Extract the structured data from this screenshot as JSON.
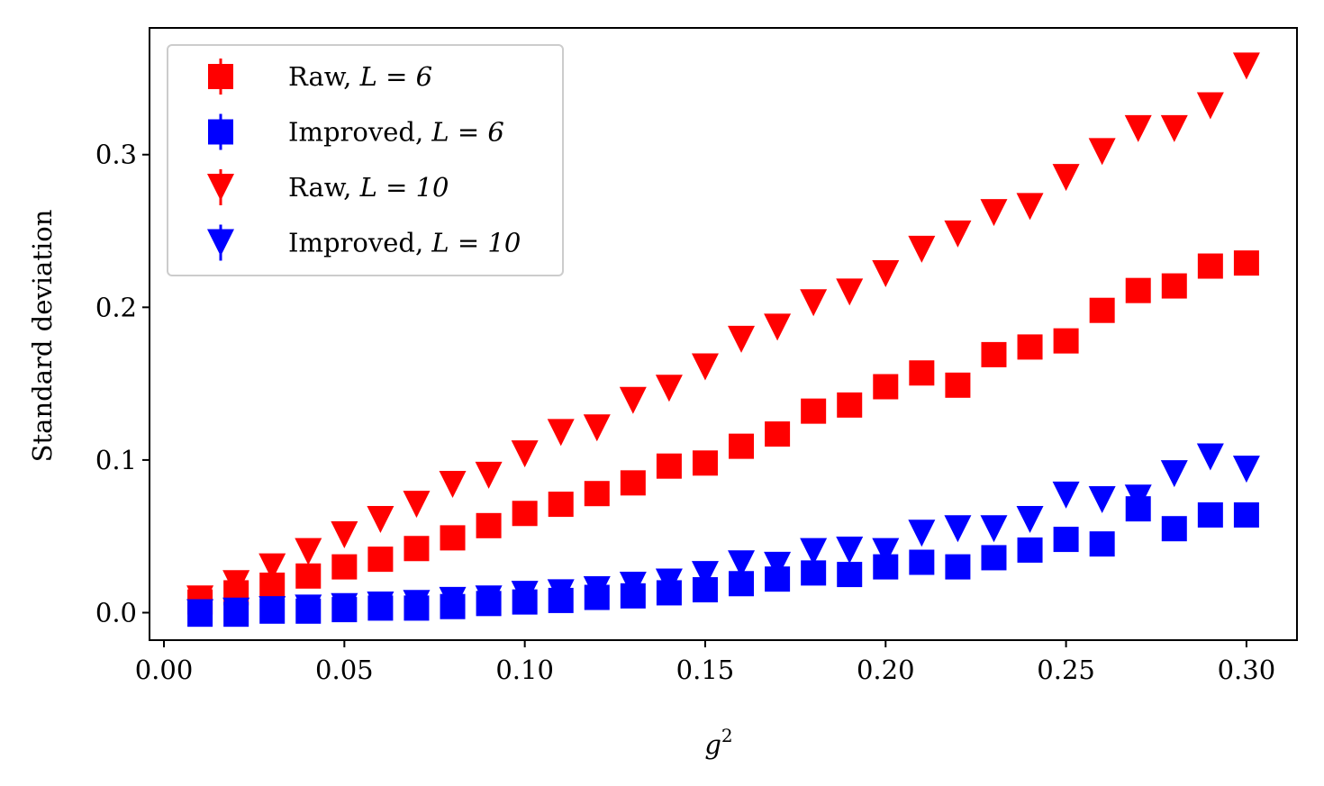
{
  "chart_data": {
    "type": "scatter",
    "title": "",
    "xlabel": "g",
    "xlabel_superscript": "2",
    "ylabel": "Standard deviation",
    "xlim": [
      -0.004,
      0.314
    ],
    "ylim": [
      -0.018,
      0.383
    ],
    "xticks": [
      "0.00",
      "0.05",
      "0.10",
      "0.15",
      "0.20",
      "0.25",
      "0.30"
    ],
    "yticks": [
      "0.0",
      "0.1",
      "0.2",
      "0.3"
    ],
    "grid": false,
    "legend_position": "top-left",
    "x": [
      0.01,
      0.02,
      0.03,
      0.04,
      0.05,
      0.06,
      0.07,
      0.08,
      0.09,
      0.1,
      0.11,
      0.12,
      0.13,
      0.14,
      0.15,
      0.16,
      0.17,
      0.18,
      0.19,
      0.2,
      0.21,
      0.22,
      0.23,
      0.24,
      0.25,
      0.26,
      0.27,
      0.28,
      0.29,
      0.3
    ],
    "series": [
      {
        "name": "Raw, ",
        "name_math": "L = 6",
        "marker": "square",
        "color": "#ff0000",
        "values": [
          0.007,
          0.013,
          0.018,
          0.024,
          0.03,
          0.035,
          0.042,
          0.049,
          0.057,
          0.065,
          0.071,
          0.078,
          0.085,
          0.096,
          0.098,
          0.109,
          0.117,
          0.132,
          0.136,
          0.148,
          0.157,
          0.149,
          0.169,
          0.174,
          0.178,
          0.198,
          0.211,
          0.214,
          0.227,
          0.229
        ]
      },
      {
        "name": "Improved, ",
        "name_math": "L = 6",
        "marker": "square",
        "color": "#0000ff",
        "values": [
          -0.001,
          -0.001,
          0.001,
          0.001,
          0.002,
          0.003,
          0.003,
          0.004,
          0.006,
          0.007,
          0.008,
          0.01,
          0.011,
          0.013,
          0.015,
          0.019,
          0.022,
          0.026,
          0.025,
          0.03,
          0.033,
          0.03,
          0.036,
          0.041,
          0.048,
          0.045,
          0.068,
          0.055,
          0.064,
          0.064
        ]
      },
      {
        "name": "Raw, ",
        "name_math": "L = 10",
        "marker": "triangle-down",
        "color": "#ff0000",
        "values": [
          0.009,
          0.019,
          0.03,
          0.04,
          0.051,
          0.061,
          0.071,
          0.084,
          0.09,
          0.104,
          0.118,
          0.121,
          0.139,
          0.147,
          0.161,
          0.179,
          0.187,
          0.203,
          0.21,
          0.222,
          0.238,
          0.248,
          0.262,
          0.266,
          0.285,
          0.302,
          0.317,
          0.317,
          0.332,
          0.358
        ]
      },
      {
        "name": "Improved, ",
        "name_math": "L = 10",
        "marker": "triangle-down",
        "color": "#0000ff",
        "values": [
          0.0,
          0.001,
          0.002,
          0.003,
          0.004,
          0.005,
          0.006,
          0.008,
          0.009,
          0.012,
          0.013,
          0.015,
          0.018,
          0.02,
          0.025,
          0.032,
          0.031,
          0.04,
          0.041,
          0.04,
          0.052,
          0.055,
          0.055,
          0.061,
          0.077,
          0.074,
          0.075,
          0.091,
          0.102,
          0.094
        ]
      }
    ]
  }
}
